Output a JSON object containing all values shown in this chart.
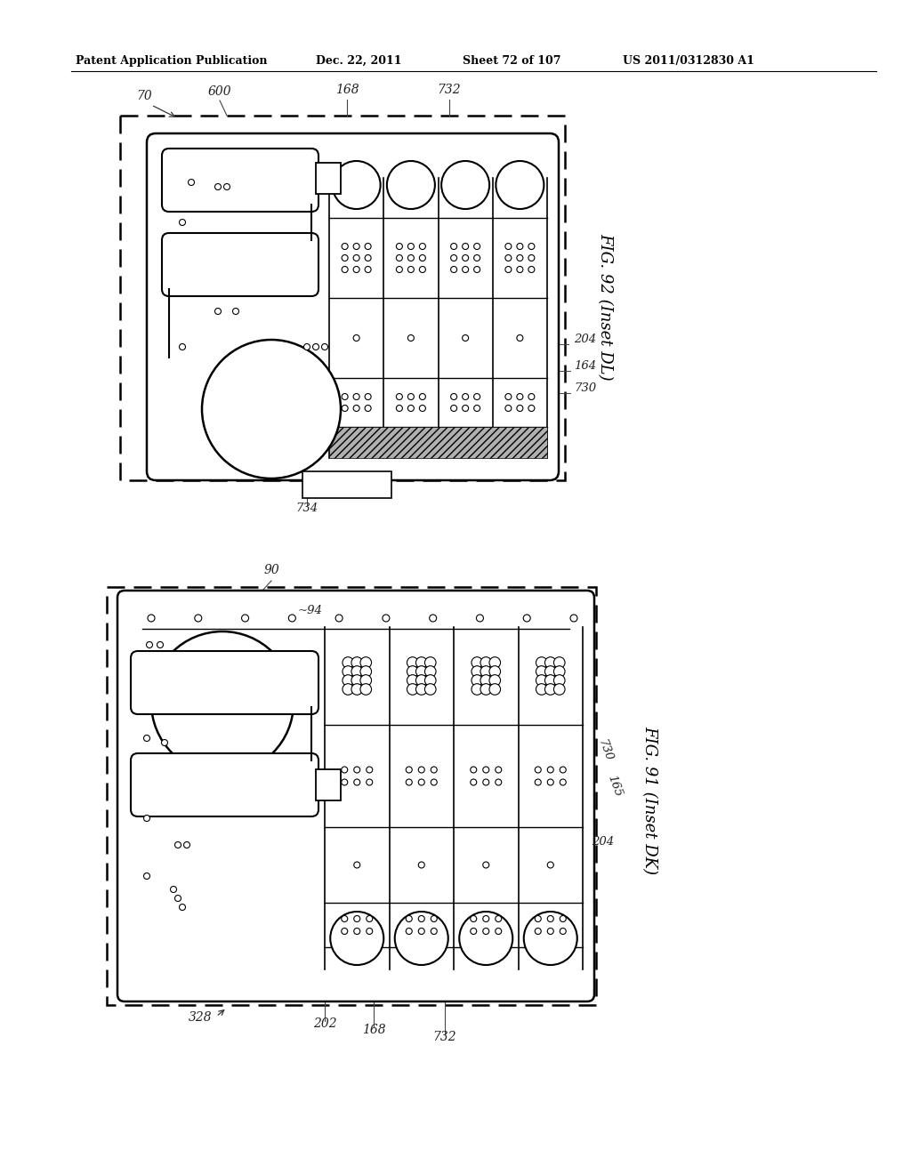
{
  "bg_color": "#ffffff",
  "line_color": "#000000",
  "gray_fill": "#c0c0c0",
  "header_text": "Patent Application Publication",
  "header_date": "Dec. 22, 2011",
  "header_sheet": "Sheet 72 of 107",
  "header_patent": "US 2011/0312830 A1",
  "fig1_label": "FIG. 92 (Inset DL)",
  "fig2_label": "FIG. 91 (Inset DK)"
}
